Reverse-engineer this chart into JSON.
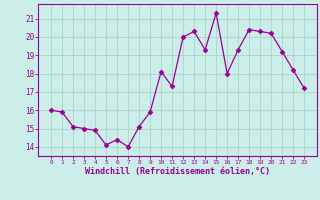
{
  "x": [
    0,
    1,
    2,
    3,
    4,
    5,
    6,
    7,
    8,
    9,
    10,
    11,
    12,
    13,
    14,
    15,
    16,
    17,
    18,
    19,
    20,
    21,
    22,
    23
  ],
  "y": [
    16.0,
    15.9,
    15.1,
    15.0,
    14.9,
    14.1,
    14.4,
    14.0,
    15.1,
    15.9,
    18.1,
    17.3,
    20.0,
    20.3,
    19.3,
    21.3,
    18.0,
    19.3,
    20.4,
    20.3,
    20.2,
    19.2,
    18.2,
    17.2
  ],
  "xlabel": "Windchill (Refroidissement éolien,°C)",
  "ylim": [
    13.5,
    21.8
  ],
  "yticks": [
    14,
    15,
    16,
    17,
    18,
    19,
    20,
    21
  ],
  "xticks": [
    0,
    1,
    2,
    3,
    4,
    5,
    6,
    7,
    8,
    9,
    10,
    11,
    12,
    13,
    14,
    15,
    16,
    17,
    18,
    19,
    20,
    21,
    22,
    23
  ],
  "line_color": "#990099",
  "marker": "D",
  "marker_size": 2.5,
  "bg_color": "#cceee8",
  "grid_color": "#aad4ce",
  "spine_color": "#990099",
  "tick_color": "#990099",
  "label_color": "#990099"
}
